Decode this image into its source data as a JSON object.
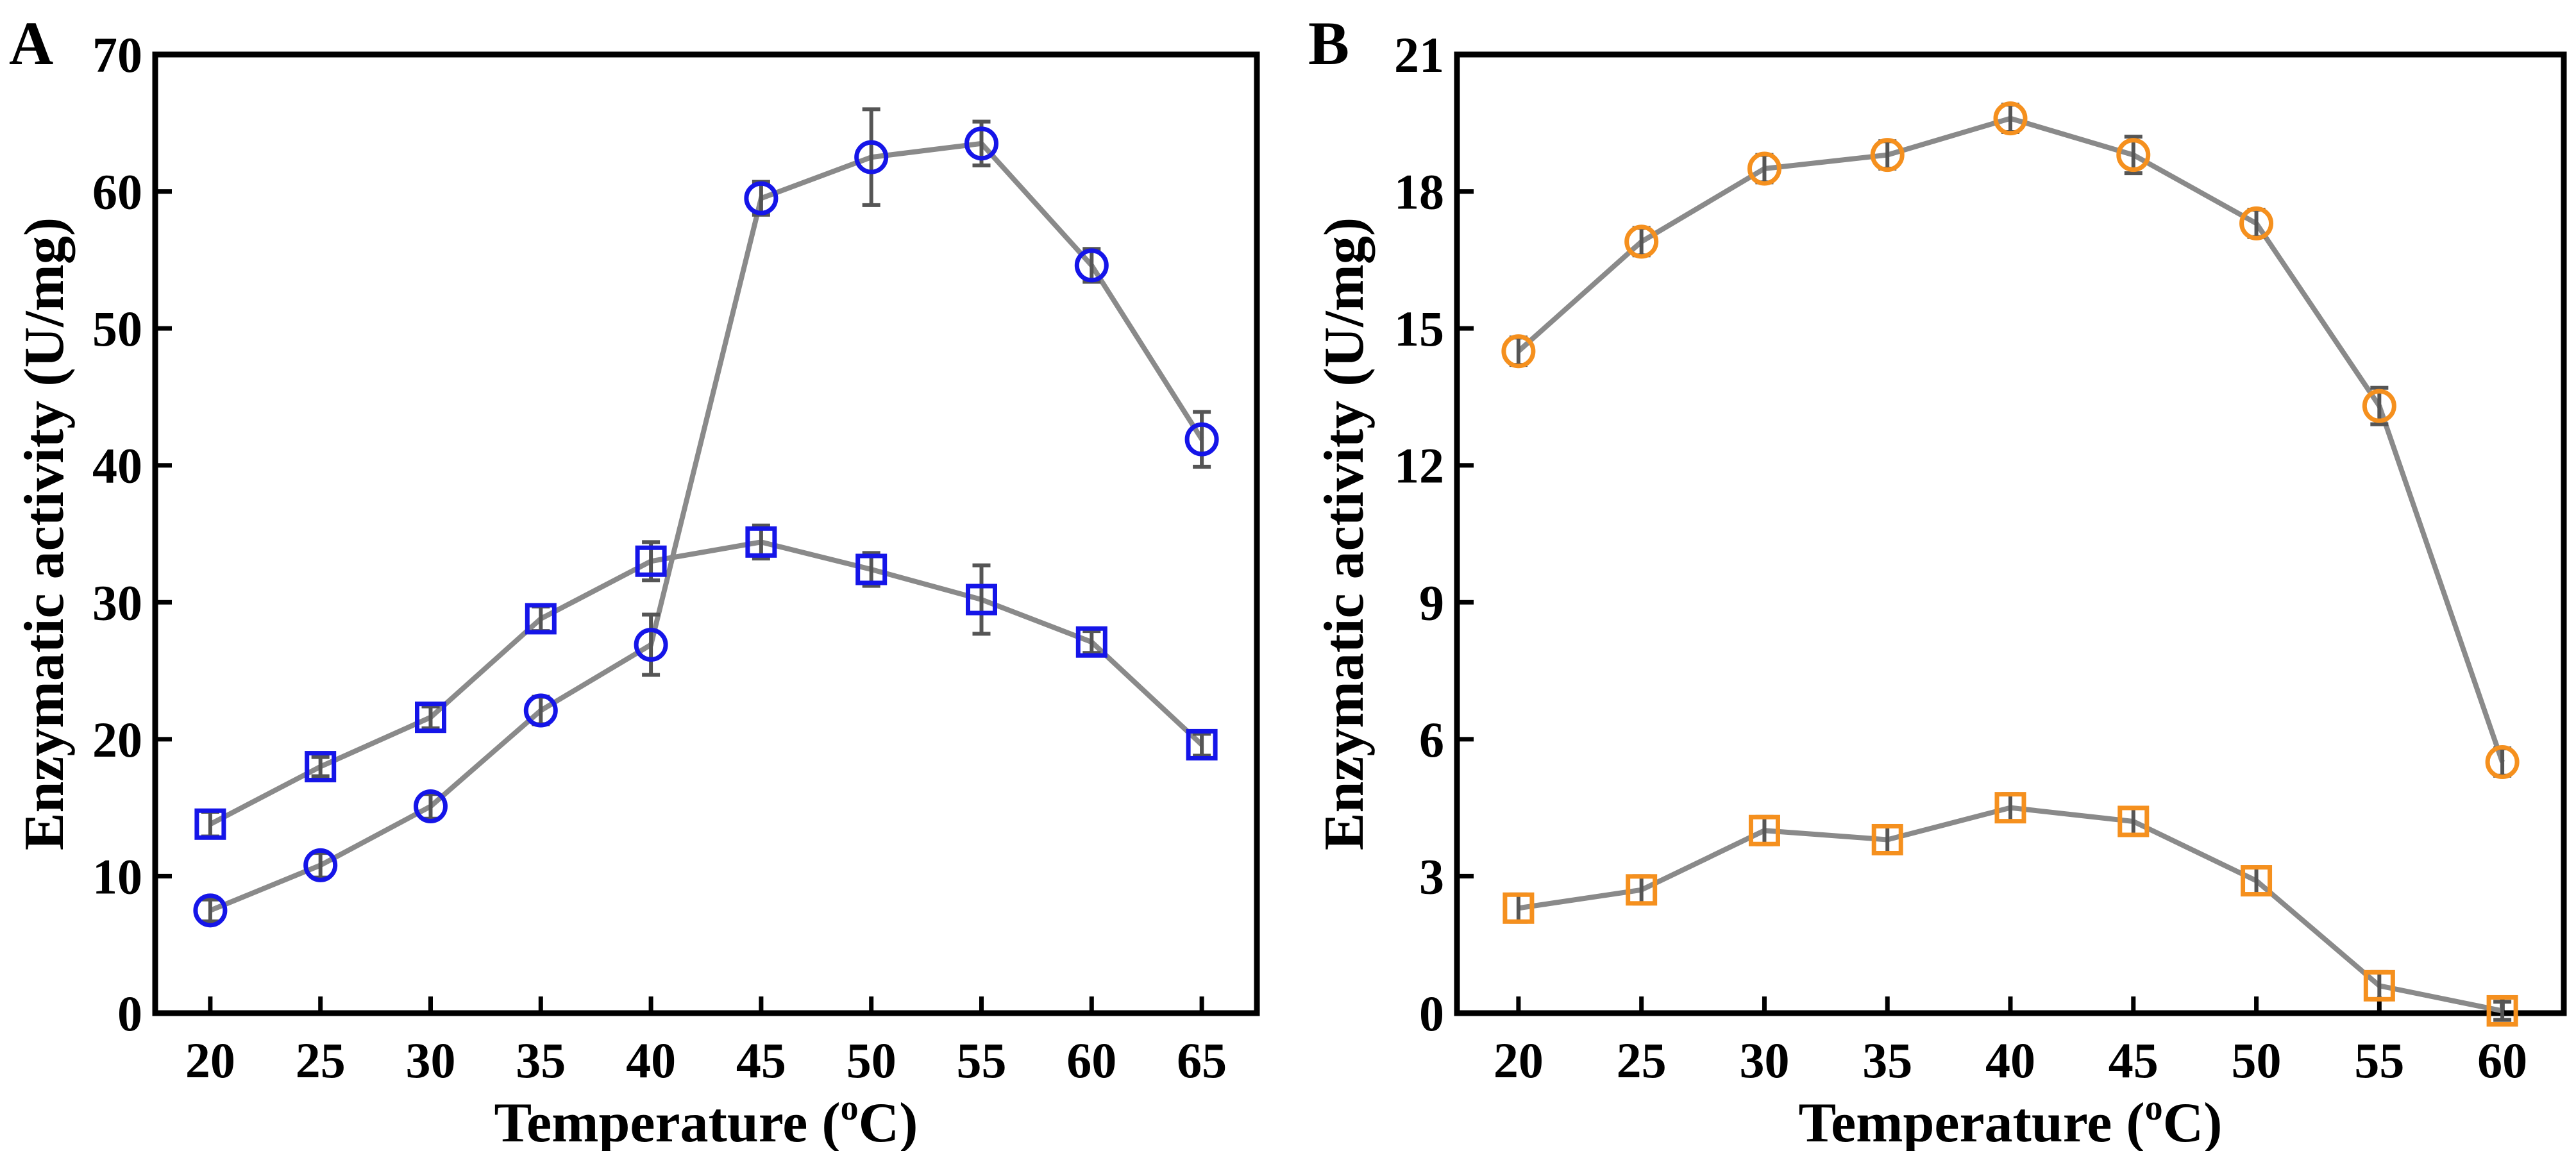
{
  "chart_data": [
    {
      "type": "line",
      "panel_label": "A",
      "xlabel": "Temperature (",
      "xlabel_sup": "o",
      "xlabel_end": "C)",
      "ylabel": "Enzymatic activity (U/mg)",
      "xlim": [
        17.5,
        67.5
      ],
      "ylim": [
        0,
        70
      ],
      "x": [
        20,
        25,
        30,
        35,
        40,
        45,
        50,
        55,
        60,
        65
      ],
      "xticks": [
        "20",
        "25",
        "30",
        "35",
        "40",
        "45",
        "50",
        "55",
        "60",
        "65"
      ],
      "yticks": [
        "0",
        "10",
        "20",
        "30",
        "40",
        "50",
        "60",
        "70"
      ],
      "ytick_values": [
        0,
        10,
        20,
        30,
        40,
        50,
        60,
        70
      ],
      "series": [
        {
          "name": "circle",
          "marker": "circle",
          "color": "#1515e8",
          "values": [
            7.5,
            10.8,
            15.1,
            22.1,
            26.9,
            59.5,
            62.5,
            63.5,
            54.6,
            41.9
          ],
          "errors": [
            0.8,
            0.9,
            0.9,
            1.0,
            2.2,
            1.2,
            3.5,
            1.6,
            1.2,
            2.0
          ]
        },
        {
          "name": "square",
          "marker": "square",
          "color": "#1515e8",
          "values": [
            13.8,
            18.0,
            21.6,
            28.8,
            33.0,
            34.4,
            32.4,
            30.2,
            27.1,
            19.6
          ],
          "errors": [
            0.9,
            0.7,
            0.8,
            0.9,
            1.4,
            1.2,
            1.2,
            2.5,
            0.8,
            0.8
          ]
        }
      ]
    },
    {
      "type": "line",
      "panel_label": "B",
      "xlabel": "Temperature (",
      "xlabel_sup": "o",
      "xlabel_end": "C)",
      "ylabel": "Enzymatic activity (U/mg)",
      "xlim": [
        17.5,
        62.5
      ],
      "ylim": [
        0,
        21
      ],
      "x": [
        20,
        25,
        30,
        35,
        40,
        45,
        50,
        55,
        60
      ],
      "xticks": [
        "20",
        "25",
        "30",
        "35",
        "40",
        "45",
        "50",
        "55",
        "60"
      ],
      "yticks": [
        "0",
        "3",
        "6",
        "9",
        "12",
        "15",
        "18",
        "21"
      ],
      "ytick_values": [
        0,
        3,
        6,
        9,
        12,
        15,
        18,
        21
      ],
      "series": [
        {
          "name": "circle",
          "marker": "circle",
          "color": "#f5901e",
          "values": [
            14.5,
            16.9,
            18.5,
            18.8,
            19.6,
            18.8,
            17.3,
            13.3,
            5.5
          ],
          "errors": [
            0.3,
            0.3,
            0.3,
            0.3,
            0.3,
            0.4,
            0.3,
            0.4,
            0.3
          ]
        },
        {
          "name": "square",
          "marker": "square",
          "color": "#f5901e",
          "values": [
            2.3,
            2.7,
            4.0,
            3.8,
            4.5,
            4.2,
            2.9,
            0.6,
            0.05
          ],
          "errors": [
            0.3,
            0.3,
            0.3,
            0.3,
            0.3,
            0.3,
            0.3,
            0.3,
            0.2
          ]
        }
      ]
    }
  ]
}
